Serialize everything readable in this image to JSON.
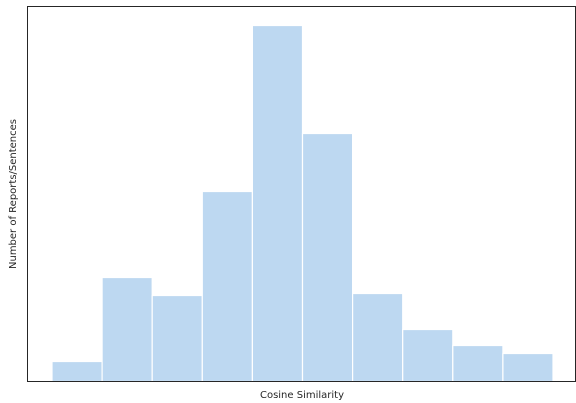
{
  "chart_data": {
    "type": "bar",
    "title": "",
    "xlabel": "Cosine Similarity",
    "ylabel": "Number of Reports/Sentences",
    "bin_count": 10,
    "values": [
      20,
      104,
      86,
      190,
      356,
      248,
      88,
      52,
      36,
      28
    ],
    "ylim": [
      0,
      375
    ],
    "grid": false,
    "legend": "none",
    "bar_color": "#bdd8f1",
    "edge_color": "#ffffff",
    "frame_color": "#262626"
  }
}
